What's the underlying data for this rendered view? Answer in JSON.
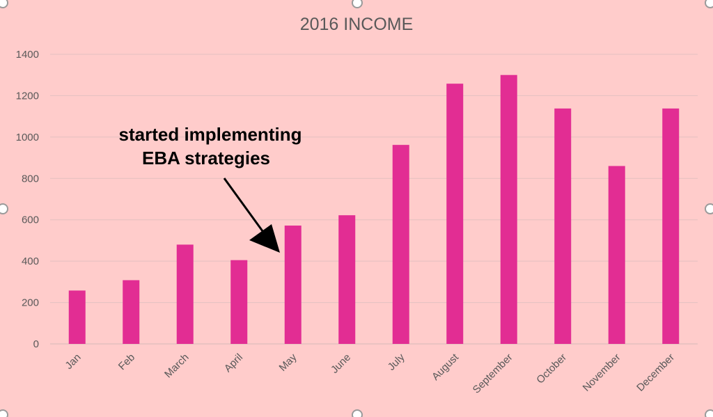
{
  "chart_data": {
    "type": "bar",
    "title": "2016 INCOME",
    "categories": [
      "Jan",
      "Feb",
      "March",
      "April",
      "May",
      "June",
      "July",
      "August",
      "September",
      "October",
      "November",
      "December"
    ],
    "values": [
      258,
      308,
      480,
      405,
      572,
      622,
      962,
      1258,
      1300,
      1138,
      860,
      1138
    ],
    "ylim": [
      0,
      1400
    ],
    "yticks": [
      "0",
      "200",
      "400",
      "600",
      "800",
      "1000",
      "1200",
      "1400"
    ],
    "grid": true,
    "legend": "none",
    "annotation": {
      "lines": [
        "started implementing",
        "EBA strategies"
      ],
      "points_to": "May"
    }
  },
  "colors": {
    "background": "#ffcccb",
    "bar": "#e22d93",
    "text": "#595959",
    "annotation": "#000000"
  }
}
